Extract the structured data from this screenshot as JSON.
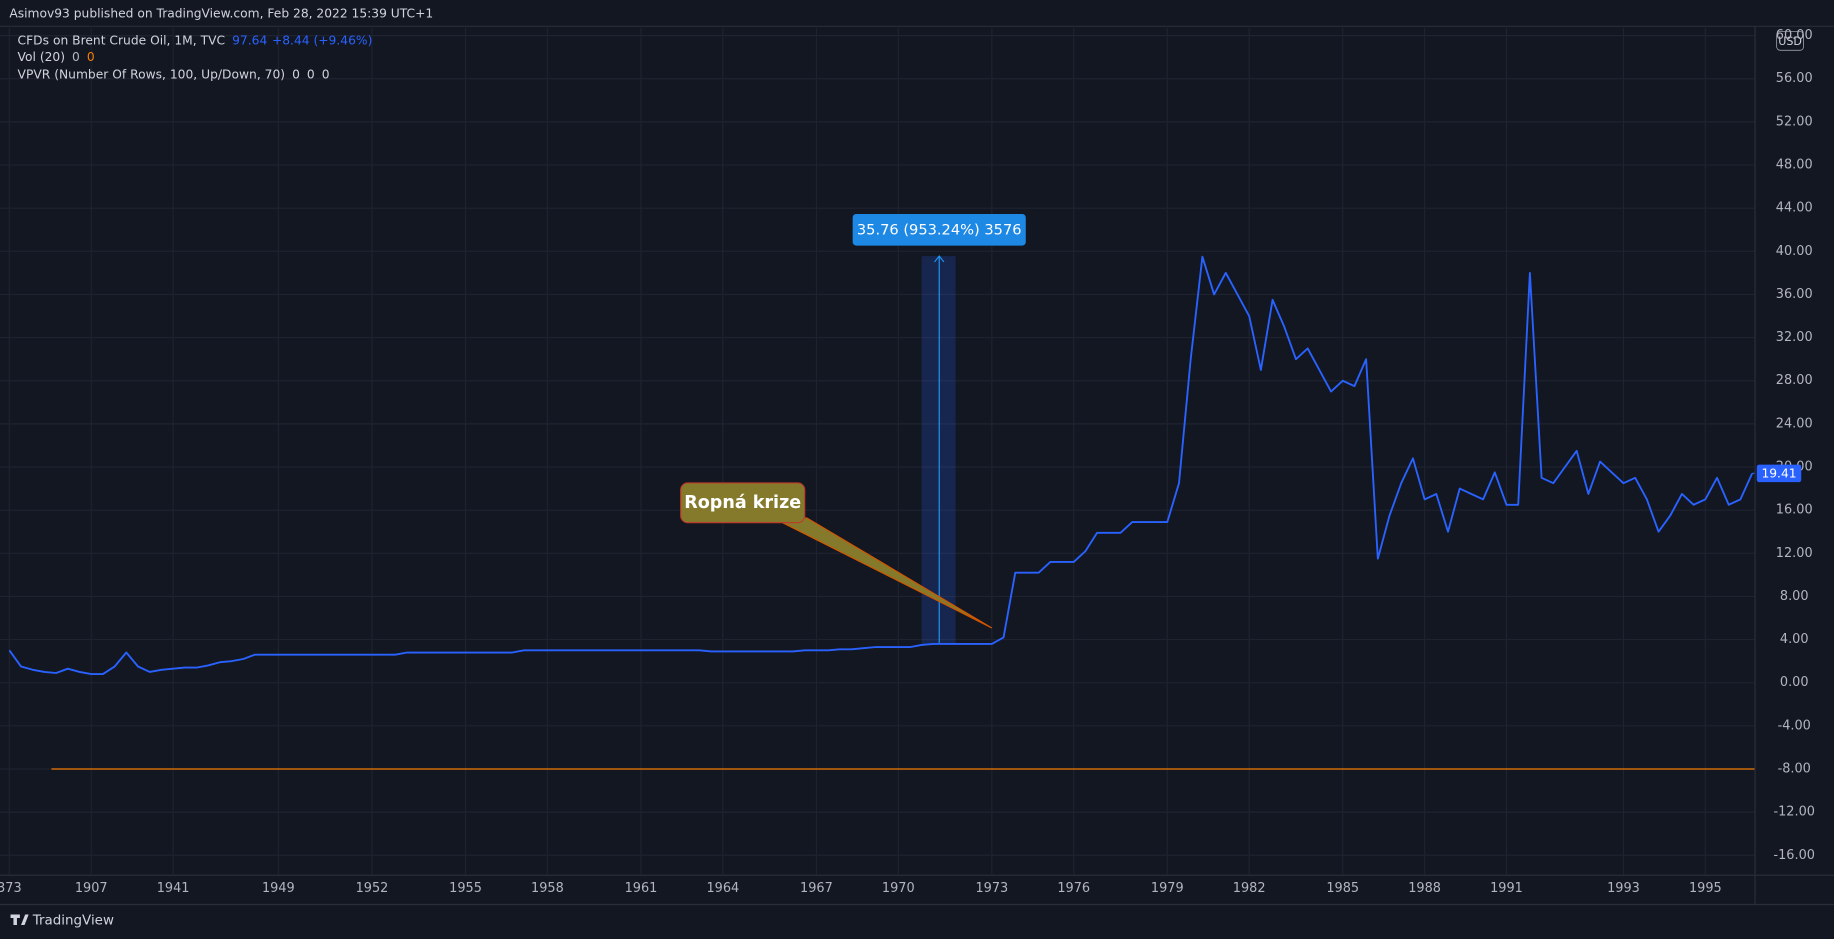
{
  "header": {
    "title": "Asimov93 published on TradingView.com, Feb 28, 2022 15:39 UTC+1"
  },
  "legend": {
    "symbol": "CFDs on Brent Crude Oil, 1M, TVC",
    "price": "97.64",
    "change": "+8.44 (+9.46%)",
    "volume": "Vol (20)",
    "volume_values": [
      "0",
      "0"
    ],
    "vpvr": "VPVR (Number Of Rows, 100, Up/Down, 70)",
    "vpvr_values": [
      "0",
      "0",
      "0"
    ]
  },
  "footer": {
    "brand": "TradingView"
  },
  "chart_data": {
    "type": "line",
    "currency": "USD",
    "categories": [
      "373",
      null,
      null,
      null,
      null,
      null,
      null,
      "1907",
      null,
      null,
      null,
      null,
      null,
      null,
      "1941",
      null,
      null,
      null,
      null,
      null,
      null,
      null,
      null,
      "1949",
      null,
      null,
      null,
      null,
      null,
      null,
      null,
      "1952",
      null,
      null,
      null,
      null,
      null,
      null,
      null,
      "1955",
      null,
      null,
      null,
      null,
      null,
      null,
      "1958",
      null,
      null,
      null,
      null,
      null,
      null,
      null,
      "1961",
      null,
      null,
      null,
      null,
      null,
      null,
      "1964",
      null,
      null,
      null,
      null,
      null,
      null,
      null,
      "1967",
      null,
      null,
      null,
      null,
      null,
      null,
      "1970",
      null,
      null,
      null,
      null,
      null,
      null,
      null,
      "1973",
      null,
      null,
      null,
      null,
      null,
      null,
      "1976",
      null,
      null,
      null,
      null,
      null,
      null,
      null,
      "1979",
      null,
      null,
      null,
      null,
      null,
      null,
      "1982",
      null,
      null,
      null,
      null,
      null,
      null,
      null,
      "1985",
      null,
      null,
      null,
      null,
      null,
      null,
      "1988",
      null,
      null,
      null,
      null,
      null,
      null,
      "1991",
      null,
      null,
      null,
      null,
      null,
      null,
      null,
      null,
      null,
      "1993",
      null,
      null,
      null,
      null,
      null,
      null,
      "1995",
      null,
      null,
      null,
      null
    ],
    "series": [
      {
        "name": "CFDs on Brent Crude Oil",
        "color": "#2962ff",
        "values": [
          3.0,
          1.5,
          1.2,
          1.0,
          0.9,
          1.3,
          1.0,
          0.8,
          0.8,
          1.5,
          2.8,
          1.5,
          1.0,
          1.2,
          1.3,
          1.4,
          1.4,
          1.6,
          1.9,
          2.0,
          2.2,
          2.6,
          2.6,
          2.6,
          2.6,
          2.6,
          2.6,
          2.6,
          2.6,
          2.6,
          2.6,
          2.6,
          2.6,
          2.6,
          2.8,
          2.8,
          2.8,
          2.8,
          2.8,
          2.8,
          2.8,
          2.8,
          2.8,
          2.8,
          3.0,
          3.0,
          3.0,
          3.0,
          3.0,
          3.0,
          3.0,
          3.0,
          3.0,
          3.0,
          3.0,
          3.0,
          3.0,
          3.0,
          3.0,
          3.0,
          2.9,
          2.9,
          2.9,
          2.9,
          2.9,
          2.9,
          2.9,
          2.9,
          3.0,
          3.0,
          3.0,
          3.1,
          3.1,
          3.2,
          3.3,
          3.3,
          3.3,
          3.3,
          3.5,
          3.6,
          3.6,
          3.6,
          3.6,
          3.6,
          3.6,
          4.2,
          10.2,
          10.2,
          10.2,
          11.2,
          11.2,
          11.2,
          12.2,
          13.9,
          13.9,
          13.9,
          14.9,
          14.9,
          14.9,
          14.9,
          18.5,
          30,
          39.5,
          36,
          38,
          36,
          34,
          29,
          35.5,
          33,
          30,
          31,
          29,
          27,
          28,
          27.5,
          30,
          11.5,
          15.5,
          18.5,
          20.8,
          17,
          17.5,
          14,
          18,
          17.5,
          17,
          19.5,
          16.5,
          16.5,
          38,
          19,
          18.5,
          20,
          21.5,
          17.5,
          20.5,
          19.5,
          18.5,
          19,
          17,
          14,
          15.5,
          17.5,
          16.5,
          17,
          19,
          16.5,
          17,
          19.4
        ]
      }
    ],
    "last_price": 19.41,
    "horizontal_line": {
      "value": -8,
      "color": "#f57c00"
    },
    "ylim": [
      -17.8,
      60.7
    ],
    "yticks": [
      {
        "value": -16,
        "label": "-16.00"
      },
      {
        "value": -12,
        "label": "-12.00"
      },
      {
        "value": -8,
        "label": "-8.00"
      },
      {
        "value": -4,
        "label": "-4.00"
      },
      {
        "value": 0,
        "label": "0.00"
      },
      {
        "value": 4,
        "label": "4.00"
      },
      {
        "value": 8,
        "label": "8.00"
      },
      {
        "value": 12,
        "label": "12.00"
      },
      {
        "value": 16,
        "label": "16.00"
      },
      {
        "value": 20,
        "label": "20.00"
      },
      {
        "value": 24,
        "label": "24.00"
      },
      {
        "value": 28,
        "label": "28.00"
      },
      {
        "value": 32,
        "label": "32.00"
      },
      {
        "value": 36,
        "label": "36.00"
      },
      {
        "value": 40,
        "label": "40.00"
      },
      {
        "value": 44,
        "label": "44.00"
      },
      {
        "value": 48,
        "label": "48.00"
      },
      {
        "value": 52,
        "label": "52.00"
      },
      {
        "value": 56,
        "label": "56.00"
      },
      {
        "value": 60,
        "label": "60.00"
      }
    ],
    "grid": true,
    "annotations": {
      "measure": "35.76 (953.24%) 3576",
      "callout": "Ropná krize"
    }
  }
}
